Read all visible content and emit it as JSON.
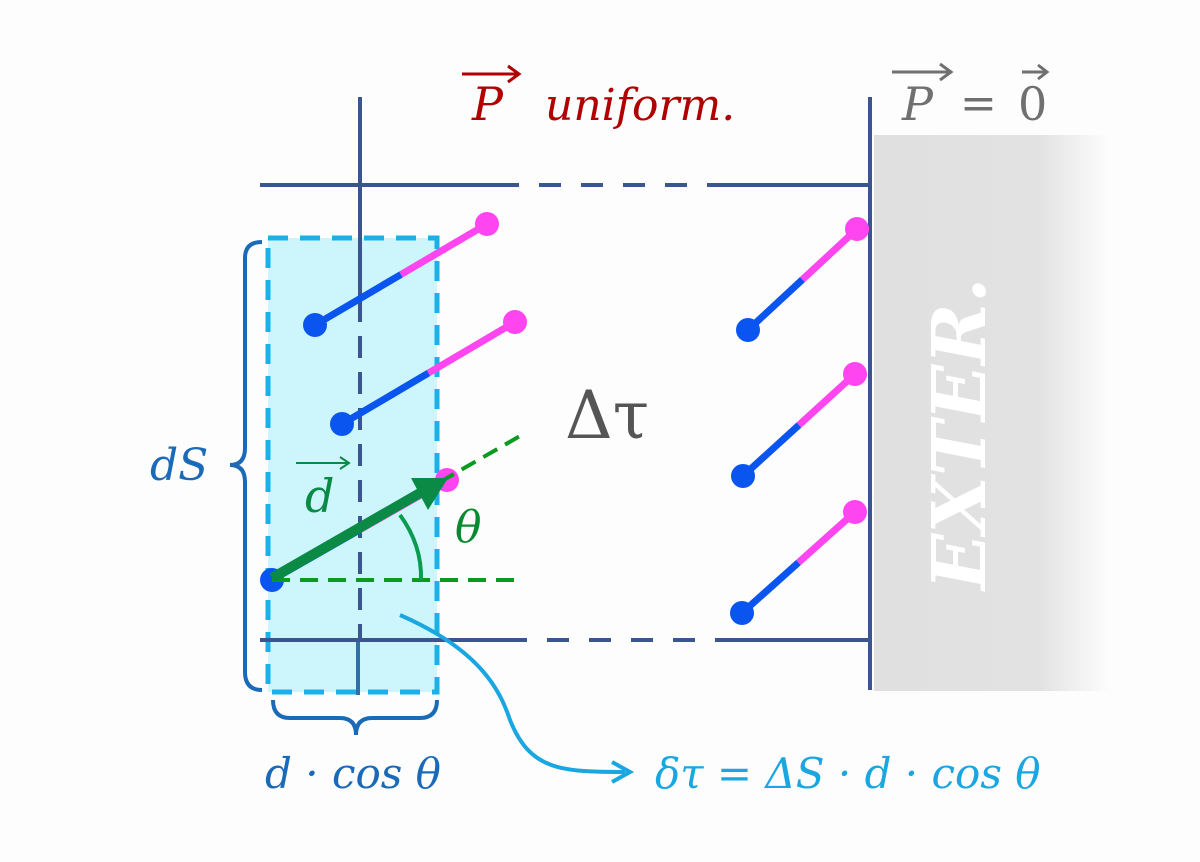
{
  "labels": {
    "p_uniform_symbol": "P",
    "p_uniform_text": "uniform.",
    "p_zero_left": "P",
    "p_zero_equals": "=",
    "p_zero_right": "0",
    "delta_tau": "Δτ",
    "ds": "dS",
    "d_vector": "d",
    "theta": "θ",
    "d_cos_theta": "d · cos θ",
    "formula": "δτ = ΔS · d · cos θ",
    "exterior": "EXTER."
  },
  "colors": {
    "frame": "#3a5590",
    "cyan_fill": "#ccf6fb",
    "cyan_dash": "#1ab0e8",
    "dipole_negative": "#0a55f0",
    "dipole_positive": "#ff45ef",
    "vector_green": "#0a8a45",
    "title_red": "#b00000",
    "brace_blue": "#1a6ab8",
    "formula_blue": "#1aa6e0",
    "exterior_gray": "#e0e0e0"
  }
}
